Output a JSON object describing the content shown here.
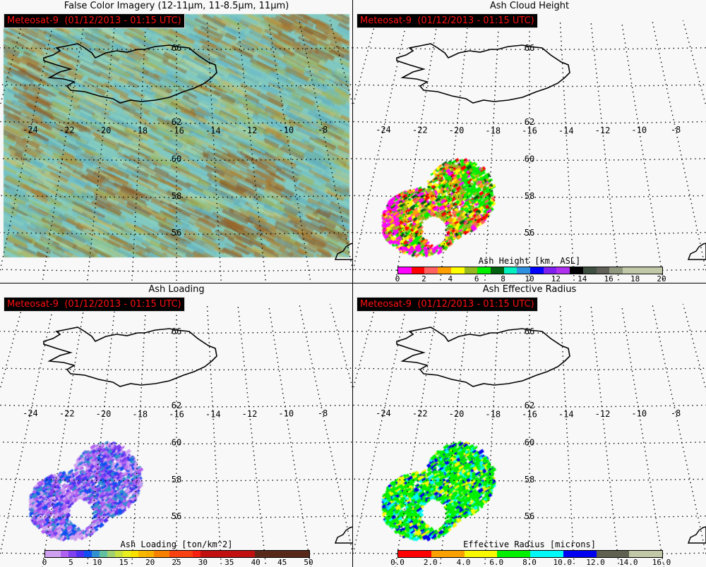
{
  "badge": "Meteosat-9  (01/12/2013 - 01:15 UTC)",
  "map": {
    "lat_labels": [
      "66",
      "62",
      "60",
      "58",
      "56"
    ],
    "lon_labels": [
      "-24",
      "-22",
      "-20",
      "-18",
      "-16",
      "-14",
      "-12",
      "-10",
      "-8"
    ]
  },
  "panels": [
    {
      "id": "false-color",
      "title": "False Color Imagery (12-11µm, 11-8.5µm, 11µm)"
    },
    {
      "id": "ash-height",
      "title": "Ash Cloud Height",
      "colorbar": {
        "label": "Ash Height [km, ASL]",
        "min": 0,
        "max": 20,
        "ticks": [
          "0",
          "2",
          "4",
          "6",
          "8",
          "10",
          "12",
          "14",
          "16",
          "18",
          "20"
        ],
        "colors": [
          "#ff00ff",
          "#ff0000",
          "#ff6060",
          "#ffa000",
          "#ffff00",
          "#98b820",
          "#00f000",
          "#006010",
          "#00f0c0",
          "#3090e0",
          "#0000ff",
          "#8020f0",
          "#b030f0",
          "#000000",
          "#405040",
          "#606058",
          "#909880",
          "#c0c8a8",
          "#c0c8a8",
          "#c0c8a8"
        ]
      }
    },
    {
      "id": "ash-loading",
      "title": "Ash Loading",
      "colorbar": {
        "label": "Ash Loading [ton/km^2]",
        "min": 0,
        "max": 50,
        "ticks": [
          "0",
          "5",
          "10",
          "15",
          "20",
          "25",
          "30",
          "35",
          "40",
          "45",
          "50"
        ],
        "colors": [
          "#d0a0f0",
          "#d0a0f0",
          "#b060f0",
          "#8040f0",
          "#5030f0",
          "#1050f0",
          "#3090d0",
          "#60c0a0",
          "#a0d070",
          "#c8e040",
          "#e8f020",
          "#f8e000",
          "#f8b800",
          "#f8b000",
          "#f88000",
          "#f88000",
          "#f84010",
          "#f84010",
          "#f84010",
          "#f82010",
          "#c01010",
          "#c01010",
          "#c01010",
          "#c01010",
          "#c01010",
          "#c01010",
          "#c01010",
          "#582818",
          "#582818",
          "#582818",
          "#582818",
          "#582818",
          "#582818",
          "#582818"
        ]
      }
    },
    {
      "id": "ash-radius",
      "title": "Ash Effective Radius",
      "colorbar": {
        "label": "Effective Radius [microns]",
        "min": 0,
        "max": 16,
        "ticks": [
          "0.0",
          "2.0",
          "4.0",
          "6.0",
          "8.0",
          "10.0",
          "12.0",
          "14.0",
          "16.0"
        ],
        "colors": [
          "#ff0000",
          "#f8a000",
          "#f8f800",
          "#00f000",
          "#00f8f8",
          "#0000f0",
          "#606050",
          "#c0c8a8"
        ]
      }
    }
  ]
}
